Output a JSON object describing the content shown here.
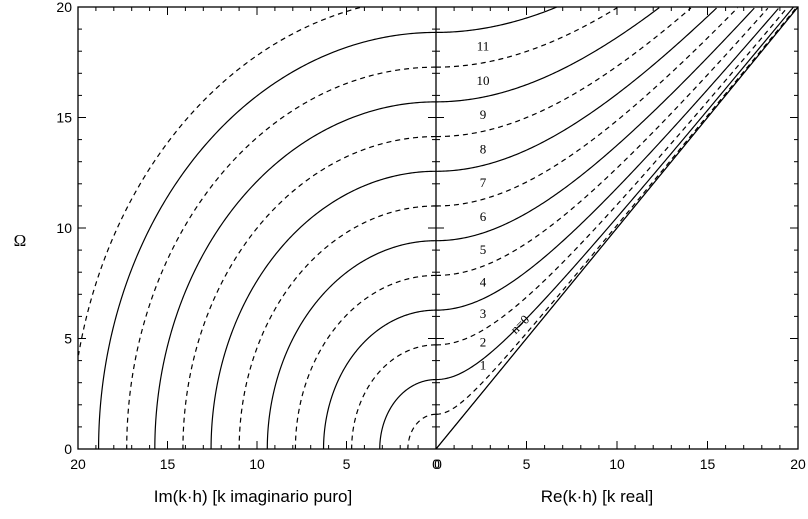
{
  "chart_data": {
    "type": "line",
    "ylabel": "Ω",
    "ylim": [
      0,
      20
    ],
    "y_ticks": [
      "0",
      "5",
      "10",
      "15",
      "20"
    ],
    "left_panel": {
      "xlabel": "Im(k·h) [k imaginario puro]",
      "xlim": [
        20,
        0
      ],
      "x_ticks": [
        "20",
        "15",
        "10",
        "5",
        "0"
      ]
    },
    "right_panel": {
      "xlabel": "Re(k·h)  [k real]",
      "xlim": [
        0,
        20
      ],
      "x_ticks": [
        "0",
        "5",
        "10",
        "15",
        "20"
      ]
    },
    "mode_labels": [
      "n=0",
      "1",
      "2",
      "3",
      "4",
      "5",
      "6",
      "7",
      "8",
      "9",
      "10",
      "11"
    ],
    "line_styles": {
      "even_n": "solid",
      "odd_n": "dashed"
    },
    "grid": false,
    "series": [
      {
        "n": 0,
        "cutoff": 0.0
      },
      {
        "n": 1,
        "cutoff": 1.571
      },
      {
        "n": 2,
        "cutoff": 3.142
      },
      {
        "n": 3,
        "cutoff": 4.712
      },
      {
        "n": 4,
        "cutoff": 6.283
      },
      {
        "n": 5,
        "cutoff": 7.854
      },
      {
        "n": 6,
        "cutoff": 9.425
      },
      {
        "n": 7,
        "cutoff": 10.996
      },
      {
        "n": 8,
        "cutoff": 12.566
      },
      {
        "n": 9,
        "cutoff": 14.137
      },
      {
        "n": 10,
        "cutoff": 15.708
      },
      {
        "n": 11,
        "cutoff": 17.279
      },
      {
        "n": 12,
        "cutoff": 18.85
      },
      {
        "n": 13,
        "cutoff": 20.42
      }
    ]
  }
}
